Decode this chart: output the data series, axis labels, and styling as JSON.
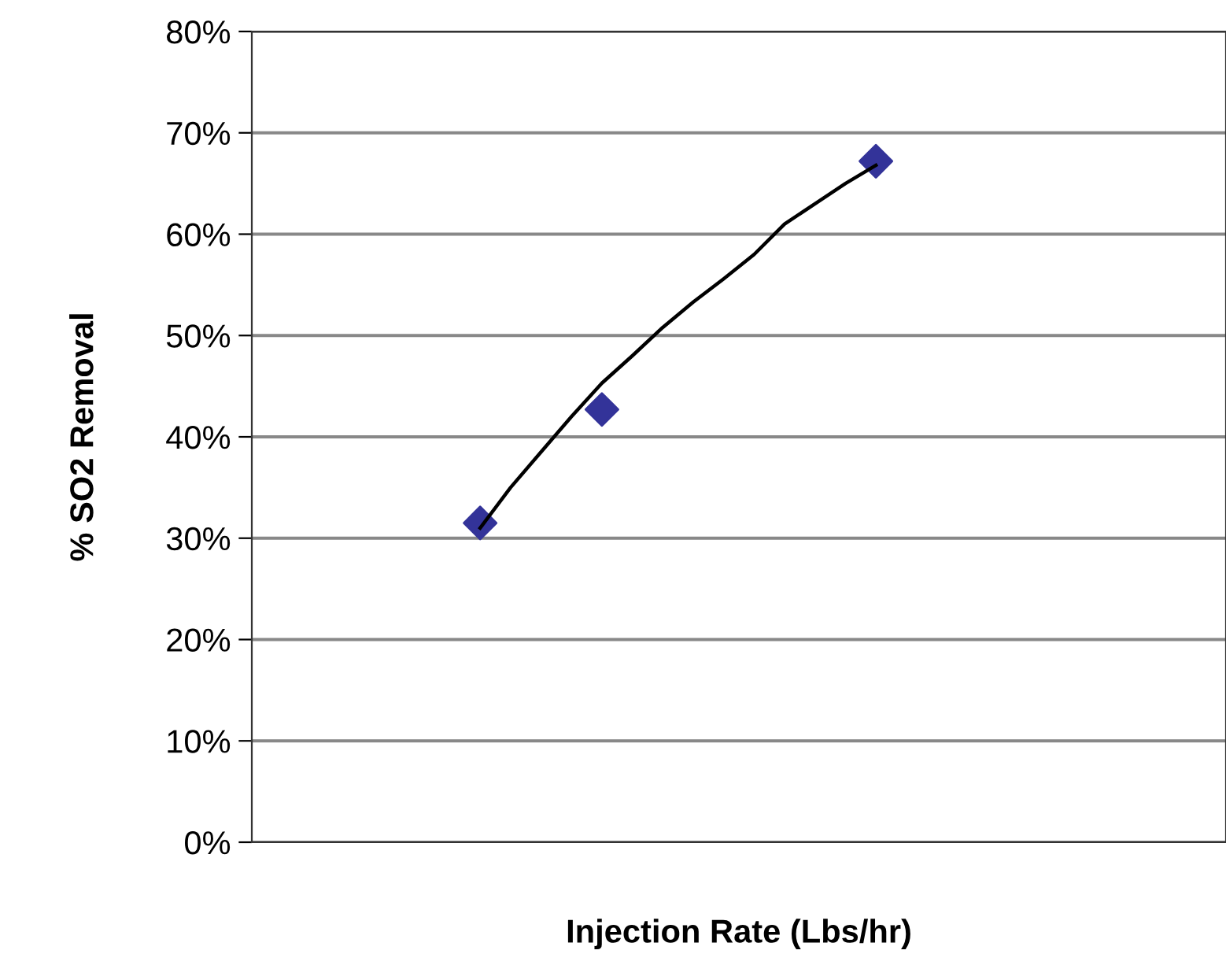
{
  "chart_data": {
    "type": "scatter",
    "xlabel": "Injection Rate (Lbs/hr)",
    "ylabel": "% SO2 Removal",
    "categories": [
      null,
      null,
      null,
      null,
      null,
      null,
      null,
      null,
      null,
      null,
      null,
      null,
      null,
      null,
      null,
      null,
      null,
      null,
      null,
      null,
      null,
      null,
      null,
      null,
      null,
      null,
      null,
      null,
      null,
      null,
      null,
      null
    ],
    "series": [
      {
        "type": "line",
        "color": "#000000",
        "marker": "none",
        "values": [
          null,
          null,
          null,
          null,
          null,
          null,
          null,
          31,
          35,
          38.5,
          42,
          45.3,
          48,
          50.8,
          53.3,
          55.6,
          58,
          61,
          63,
          65,
          66.8,
          null,
          null,
          null,
          null,
          null,
          null,
          null,
          null,
          null,
          null,
          null
        ]
      },
      {
        "color": "#333399",
        "marker": "diamond",
        "values": [
          null,
          null,
          null,
          null,
          null,
          null,
          null,
          31.5,
          null,
          null,
          null,
          42.7,
          null,
          null,
          null,
          null,
          null,
          null,
          null,
          null,
          67.2,
          null,
          null,
          null,
          null,
          null,
          null,
          null,
          null,
          null,
          null,
          null
        ]
      }
    ],
    "ylim": [
      0,
      80
    ],
    "yticks": [
      {
        "value": 0,
        "label": "0%"
      },
      {
        "value": 10,
        "label": "10%"
      },
      {
        "value": 20,
        "label": "20%"
      },
      {
        "value": 30,
        "label": "30%"
      },
      {
        "value": 40,
        "label": "40%"
      },
      {
        "value": 50,
        "label": "50%"
      },
      {
        "value": 60,
        "label": "60%"
      },
      {
        "value": 70,
        "label": "70%"
      },
      {
        "value": 80,
        "label": "80%"
      }
    ],
    "tick_labels": "y",
    "grid": "y",
    "legend": false
  }
}
